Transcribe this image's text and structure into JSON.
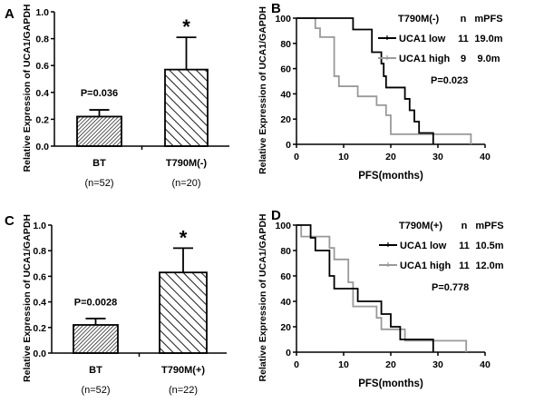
{
  "chart_data": [
    {
      "panel": "A",
      "type": "bar",
      "ylabel": "Relative Expression of UCA1/GAPDH",
      "ylim": [
        0,
        1.0
      ],
      "yticks": [
        "0.0",
        "0.2",
        "0.4",
        "0.6",
        "0.8",
        "1.0"
      ],
      "categories": [
        "BT",
        "T790M(-)"
      ],
      "subcategories": [
        "(n=52)",
        "(n=20)"
      ],
      "values": [
        0.22,
        0.57
      ],
      "error": [
        0.05,
        0.24
      ],
      "annotations": {
        "p": "P=0.036",
        "star": "*"
      }
    },
    {
      "panel": "B",
      "type": "line",
      "subtype": "kaplan-meier",
      "ylabel": "Relative Expression of UCA1/GAPDH",
      "xlabel": "PFS(months)",
      "xlim": [
        0,
        40
      ],
      "ylim": [
        0,
        100
      ],
      "xticks": [
        "0",
        "10",
        "20",
        "30",
        "40"
      ],
      "yticks": [
        "0",
        "20",
        "40",
        "60",
        "80",
        "100"
      ],
      "legend": {
        "title": "T790M(-)",
        "col_n": "n",
        "col_m": "mPFS",
        "placement": "top-right"
      },
      "series": [
        {
          "name": "UCA1 low",
          "n": "11",
          "mpfs": "19.0m",
          "color": "#000000",
          "x": [
            0,
            12,
            16,
            18,
            18.5,
            19,
            23,
            24,
            25,
            26,
            29
          ],
          "y": [
            100,
            91,
            73,
            64,
            54,
            45,
            36,
            27,
            18,
            9,
            0
          ]
        },
        {
          "name": "UCA1 high",
          "n": "9",
          "mpfs": "9.0m",
          "color": "#999999",
          "x": [
            0,
            4,
            5,
            8,
            9,
            13,
            17,
            19,
            20,
            37
          ],
          "y": [
            100,
            92,
            85,
            54,
            46,
            38,
            31,
            23,
            8,
            0
          ]
        }
      ],
      "annotations": {
        "p": "P=0.023"
      }
    },
    {
      "panel": "C",
      "type": "bar",
      "ylabel": "Relative Expression of UCA1/GAPDH",
      "ylim": [
        0,
        1.0
      ],
      "yticks": [
        "0.0",
        "0.2",
        "0.4",
        "0.6",
        "0.8",
        "1.0"
      ],
      "categories": [
        "BT",
        "T790M(+)"
      ],
      "subcategories": [
        "(n=52)",
        "(n=22)"
      ],
      "values": [
        0.22,
        0.63
      ],
      "error": [
        0.05,
        0.19
      ],
      "annotations": {
        "p": "P=0.0028",
        "star": "*"
      }
    },
    {
      "panel": "D",
      "type": "line",
      "subtype": "kaplan-meier",
      "ylabel": "Relative Expression of UCA1/GAPDH",
      "xlabel": "PFS(months)",
      "xlim": [
        0,
        40
      ],
      "ylim": [
        0,
        100
      ],
      "xticks": [
        "0",
        "10",
        "20",
        "30",
        "40"
      ],
      "yticks": [
        "0",
        "20",
        "40",
        "60",
        "80",
        "100"
      ],
      "legend": {
        "title": "T790M(+)",
        "col_n": "n",
        "col_m": "mPFS",
        "placement": "top-right"
      },
      "series": [
        {
          "name": "UCA1 low",
          "n": "11",
          "mpfs": "10.5m",
          "color": "#000000",
          "x": [
            0,
            3,
            4,
            7,
            8,
            13,
            18,
            20,
            22,
            29
          ],
          "y": [
            100,
            90,
            80,
            60,
            50,
            40,
            30,
            20,
            10,
            0
          ]
        },
        {
          "name": "UCA1 high",
          "n": "11",
          "mpfs": "12.0m",
          "color": "#999999",
          "x": [
            0,
            1,
            7,
            8,
            11,
            12,
            17,
            18,
            23,
            36
          ],
          "y": [
            100,
            91,
            82,
            73,
            55,
            36,
            27,
            18,
            9,
            0
          ]
        }
      ],
      "annotations": {
        "p": "P=0.778"
      }
    }
  ]
}
